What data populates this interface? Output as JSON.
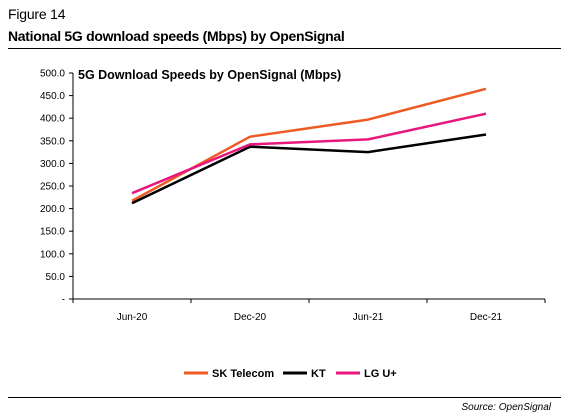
{
  "figure": {
    "label": "Figure 14",
    "title": "National 5G download speeds (Mbps) by OpenSignal",
    "source": "Source: OpenSignal"
  },
  "chart_data": {
    "type": "line",
    "title": "5G Download Speeds by OpenSignal (Mbps)",
    "categories": [
      "Jun-20",
      "Dec-20",
      "Jun-21",
      "Dec-21"
    ],
    "ylim": [
      0,
      500
    ],
    "ytick_values": [
      0,
      50,
      100,
      150,
      200,
      250,
      300,
      350,
      400,
      450,
      500
    ],
    "ytick_labels": [
      "-",
      "50.0",
      "100.0",
      "150.0",
      "200.0",
      "250.0",
      "300.0",
      "350.0",
      "400.0",
      "450.0",
      "500.0"
    ],
    "grid": false,
    "legend_position": "bottom",
    "series": [
      {
        "name": "SK Telecom",
        "color": "#ee5a24",
        "values": [
          217,
          359,
          397,
          465
        ]
      },
      {
        "name": "KT",
        "color": "#000000",
        "values": [
          212,
          337,
          325,
          364
        ]
      },
      {
        "name": "LG U+",
        "color": "#e8177e",
        "values": [
          234,
          342,
          353,
          410
        ]
      }
    ]
  }
}
